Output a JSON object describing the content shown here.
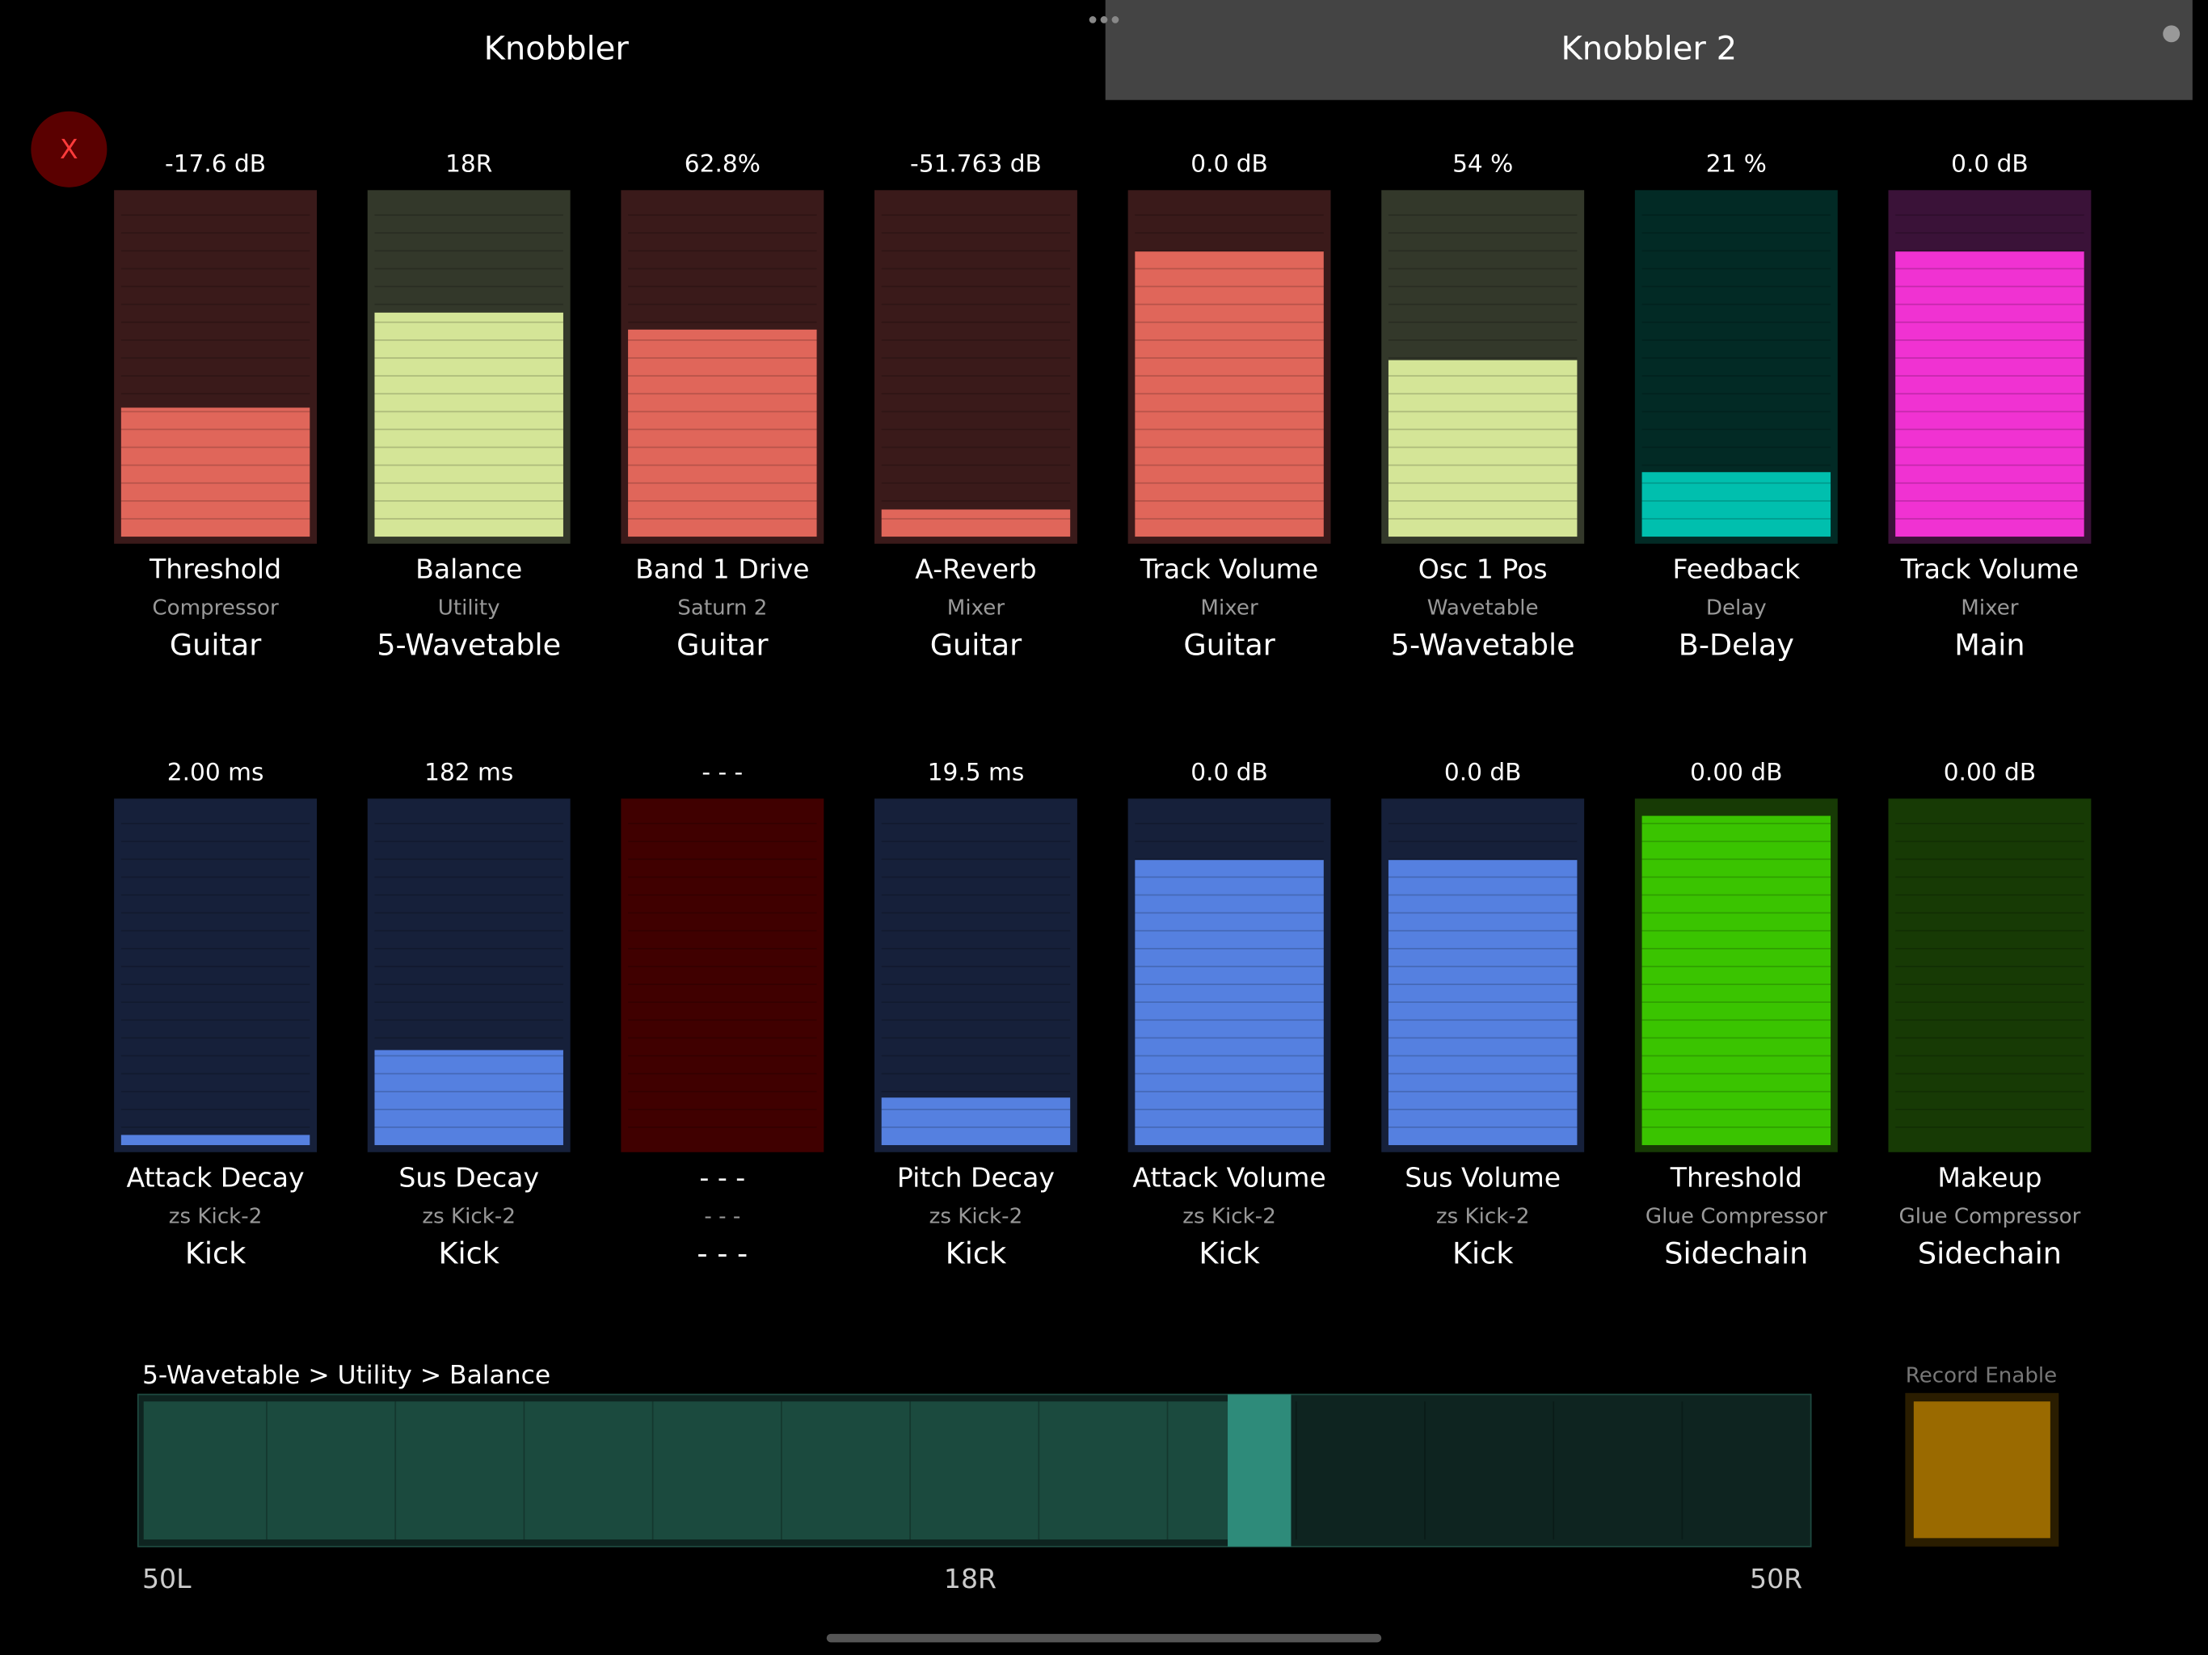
{
  "tabs": [
    "Knobbler",
    "Knobbler 2"
  ],
  "close_button": "X",
  "faders": [
    {
      "value": "-17.6 dB",
      "name": "Threshold",
      "device": "Compressor",
      "track": "Guitar",
      "level": 38,
      "bg": "#3a1a1a",
      "color": "#e0665a"
    },
    {
      "value": "18R",
      "name": "Balance",
      "device": "Utility",
      "track": "5-Wavetable",
      "level": 66,
      "bg": "#33382a",
      "color": "#d4e597"
    },
    {
      "value": "62.8%",
      "name": "Band 1 Drive",
      "device": "Saturn 2",
      "track": "Guitar",
      "level": 61,
      "bg": "#3a1a1a",
      "color": "#e0665a"
    },
    {
      "value": "-51.763 dB",
      "name": "A-Reverb",
      "device": "Mixer",
      "track": "Guitar",
      "level": 8,
      "bg": "#3a1a1a",
      "color": "#e0665a"
    },
    {
      "value": "0.0 dB",
      "name": "Track Volume",
      "device": "Mixer",
      "track": "Guitar",
      "level": 84,
      "bg": "#3a1a1a",
      "color": "#e0665a"
    },
    {
      "value": "54 %",
      "name": "Osc 1 Pos",
      "device": "Wavetable",
      "track": "5-Wavetable",
      "level": 52,
      "bg": "#33382a",
      "color": "#d4e597"
    },
    {
      "value": "21 %",
      "name": "Feedback",
      "device": "Delay",
      "track": "B-Delay",
      "level": 19,
      "bg": "#022a25",
      "color": "#00bfae"
    },
    {
      "value": "0.0 dB",
      "name": "Track Volume",
      "device": "Mixer",
      "track": "Main",
      "level": 84,
      "bg": "#3a1238",
      "color": "#f032d2"
    },
    {
      "value": "2.00 ms",
      "name": "Attack Decay",
      "device": "zs Kick-2",
      "track": "Kick",
      "level": 3,
      "bg": "#16203a",
      "color": "#5580e0"
    },
    {
      "value": "182 ms",
      "name": "Sus Decay",
      "device": "zs Kick-2",
      "track": "Kick",
      "level": 28,
      "bg": "#16203a",
      "color": "#5580e0"
    },
    {
      "value": "- - -",
      "name": "- - -",
      "device": "- - -",
      "track": "- - -",
      "level": null,
      "bg": "#400000",
      "color": "#400000"
    },
    {
      "value": "19.5 ms",
      "name": "Pitch Decay",
      "device": "zs Kick-2",
      "track": "Kick",
      "level": 14,
      "bg": "#16203a",
      "color": "#5580e0"
    },
    {
      "value": "0.0 dB",
      "name": "Attack Volume",
      "device": "zs Kick-2",
      "track": "Kick",
      "level": 84,
      "bg": "#16203a",
      "color": "#5580e0"
    },
    {
      "value": "0.0 dB",
      "name": "Sus Volume",
      "device": "zs Kick-2",
      "track": "Kick",
      "level": 84,
      "bg": "#16203a",
      "color": "#5580e0"
    },
    {
      "value": "0.00 dB",
      "name": "Threshold",
      "device": "Glue Compressor",
      "track": "Sidechain",
      "level": 97,
      "bg": "#173a05",
      "color": "#3ac400"
    },
    {
      "value": "0.00 dB",
      "name": "Makeup",
      "device": "Glue Compressor",
      "track": "Sidechain",
      "level": 0,
      "bg": "#173a05",
      "color": "#3ac400"
    }
  ],
  "selected": {
    "path": "5-Wavetable > Utility > Balance",
    "min_label": "50L",
    "value_label": "18R",
    "max_label": "50R",
    "position": 68
  },
  "record_enable": {
    "label": "Record Enable"
  }
}
